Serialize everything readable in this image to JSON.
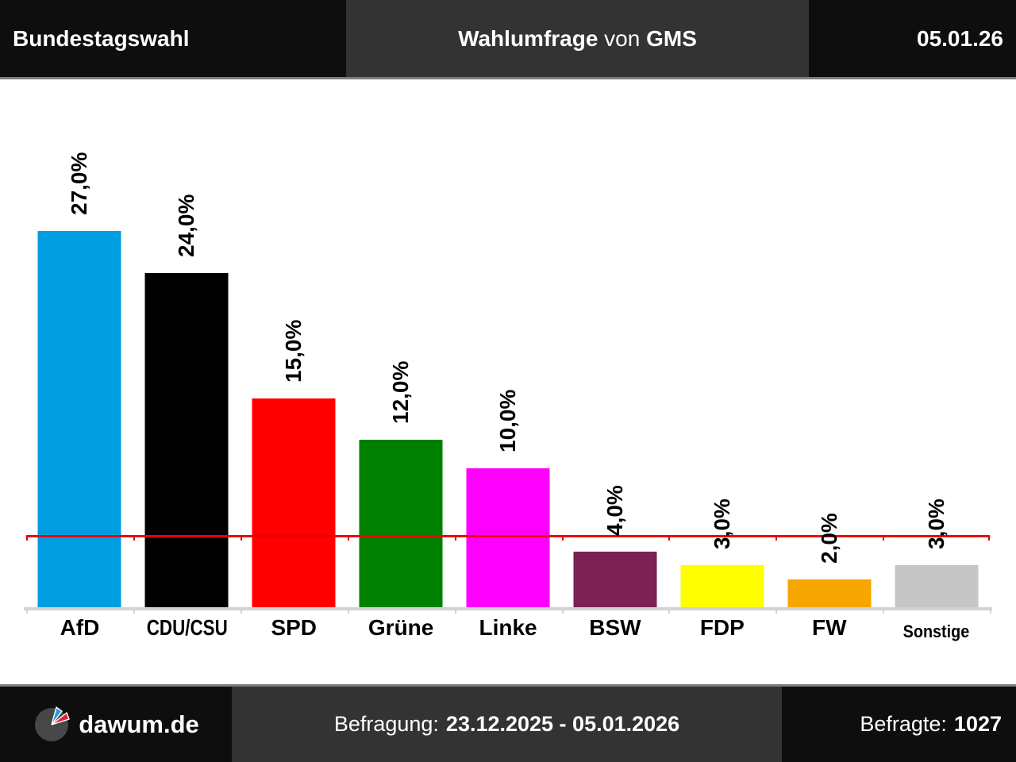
{
  "header": {
    "title": "Bundestagswahl",
    "center": {
      "part1": "Wahlumfrage",
      "part2": " von ",
      "part3": "GMS"
    },
    "date": "05.01.26"
  },
  "chart_data": {
    "type": "bar",
    "title": "Wahlumfrage von GMS",
    "categories": [
      "AfD",
      "CDU/CSU",
      "SPD",
      "Grüne",
      "Linke",
      "BSW",
      "FDP",
      "FW",
      "Sonstige"
    ],
    "values": [
      27.0,
      24.0,
      15.0,
      12.0,
      10.0,
      4.0,
      3.0,
      2.0,
      3.0
    ],
    "value_labels": [
      "27,0%",
      "24,0%",
      "15,0%",
      "12,0%",
      "10,0%",
      "4,0%",
      "3,0%",
      "2,0%",
      "3,0%"
    ],
    "bar_colors": [
      "#009EE0",
      "#000000",
      "#FF0000",
      "#008000",
      "#FF00FF",
      "#7B2154",
      "#FFFF00",
      "#F7A600",
      "#C6C6C6"
    ],
    "threshold_line": {
      "value": 5.0,
      "color": "#EE0000"
    },
    "xlabel": "",
    "ylabel": "",
    "ylim": [
      0,
      30
    ],
    "grid": false,
    "axis_color": "#D3D3D3",
    "value_label_rotation_deg": 90,
    "legend": "none"
  },
  "footer": {
    "brand": "dawum.de",
    "survey_label": "Befragung:",
    "survey_period": "23.12.2025 - 05.01.2026",
    "respondents_label": "Befragte:",
    "respondents_value": "1027"
  },
  "icons": {
    "logo": "pie-clock-logo"
  },
  "colors": {
    "bar_dark": "#0e0e0e",
    "bar_mid": "#333333",
    "divider": "#7d7d7d",
    "background": "#ffffff",
    "logo_circle": "#474747",
    "logo_blue": "#2D9FE0",
    "logo_red": "#E02339"
  }
}
